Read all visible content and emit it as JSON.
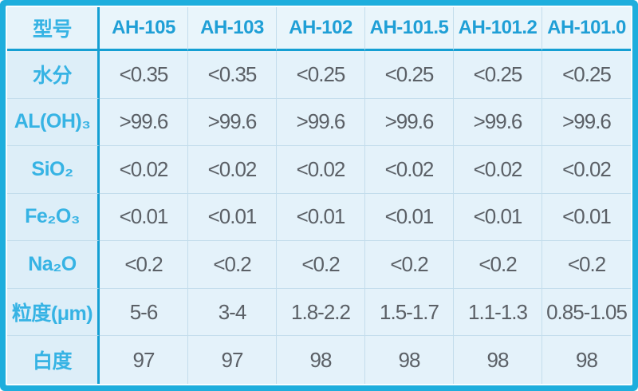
{
  "colors": {
    "accent_border": "#1eaedd",
    "separator_dark": "#149fd3",
    "gridline_light": "#c3ddec",
    "cell_background": "#e4f2fa",
    "label_column_background": "#ddeef8",
    "header_text": "#1f9fd6",
    "label_text": "#36b3e4",
    "value_text": "#5b6066"
  },
  "chart_data": {
    "type": "table",
    "corner_label": "型号",
    "columns": [
      "AH-105",
      "AH-103",
      "AH-102",
      "AH-101.5",
      "AH-101.2",
      "AH-101.0"
    ],
    "rows": [
      {
        "label": "水分",
        "values": [
          "<0.35",
          "<0.35",
          "<0.25",
          "<0.25",
          "<0.25",
          "<0.25"
        ]
      },
      {
        "label": "AL(OH)₃",
        "values": [
          ">99.6",
          ">99.6",
          ">99.6",
          ">99.6",
          ">99.6",
          ">99.6"
        ]
      },
      {
        "label": "SiO₂",
        "values": [
          "<0.02",
          "<0.02",
          "<0.02",
          "<0.02",
          "<0.02",
          "<0.02"
        ]
      },
      {
        "label": "Fe₂O₃",
        "values": [
          "<0.01",
          "<0.01",
          "<0.01",
          "<0.01",
          "<0.01",
          "<0.01"
        ]
      },
      {
        "label": "Na₂O",
        "values": [
          "<0.2",
          "<0.2",
          "<0.2",
          "<0.2",
          "<0.2",
          "<0.2"
        ]
      },
      {
        "label": "粒度(μm)",
        "values": [
          "5-6",
          "3-4",
          "1.8-2.2",
          "1.5-1.7",
          "1.1-1.3",
          "0.85-1.05"
        ]
      },
      {
        "label": "白度",
        "values": [
          "97",
          "97",
          "98",
          "98",
          "98",
          "98"
        ]
      }
    ]
  }
}
